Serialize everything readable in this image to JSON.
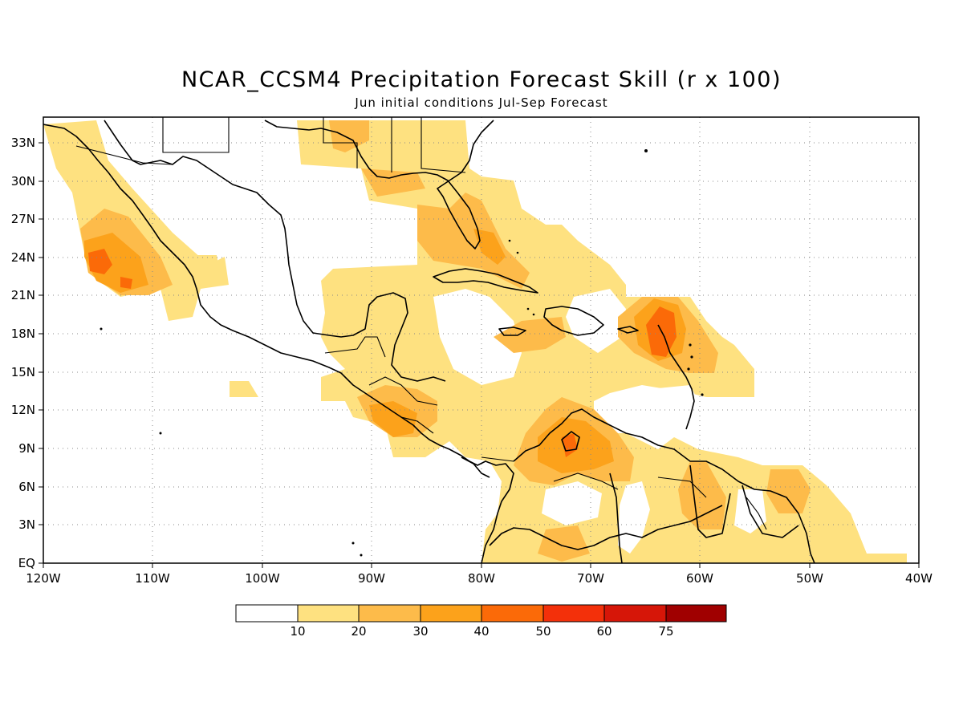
{
  "title": "NCAR_CCSM4 Precipitation Forecast Skill (r x 100)",
  "subtitle": "Jun initial conditions  Jul-Sep Forecast",
  "map": {
    "region": "Central America, Caribbean, Gulf of Mexico",
    "lon_range": [
      -120,
      -40
    ],
    "lat_range": [
      0,
      35
    ],
    "grid": "dotted",
    "x_ticks": [
      "120W",
      "110W",
      "100W",
      "90W",
      "80W",
      "70W",
      "60W",
      "50W",
      "40W"
    ],
    "y_ticks": [
      "EQ",
      "3N",
      "6N",
      "9N",
      "12N",
      "15N",
      "18N",
      "21N",
      "24N",
      "27N",
      "30N",
      "33N"
    ]
  },
  "colorbar": {
    "labels": [
      "10",
      "20",
      "30",
      "40",
      "50",
      "60",
      "75"
    ],
    "colors": [
      "#ffffff",
      "#fee180",
      "#fdbb4a",
      "#fca21b",
      "#fb6a08",
      "#f3300a",
      "#d61608",
      "#a00000"
    ]
  }
}
